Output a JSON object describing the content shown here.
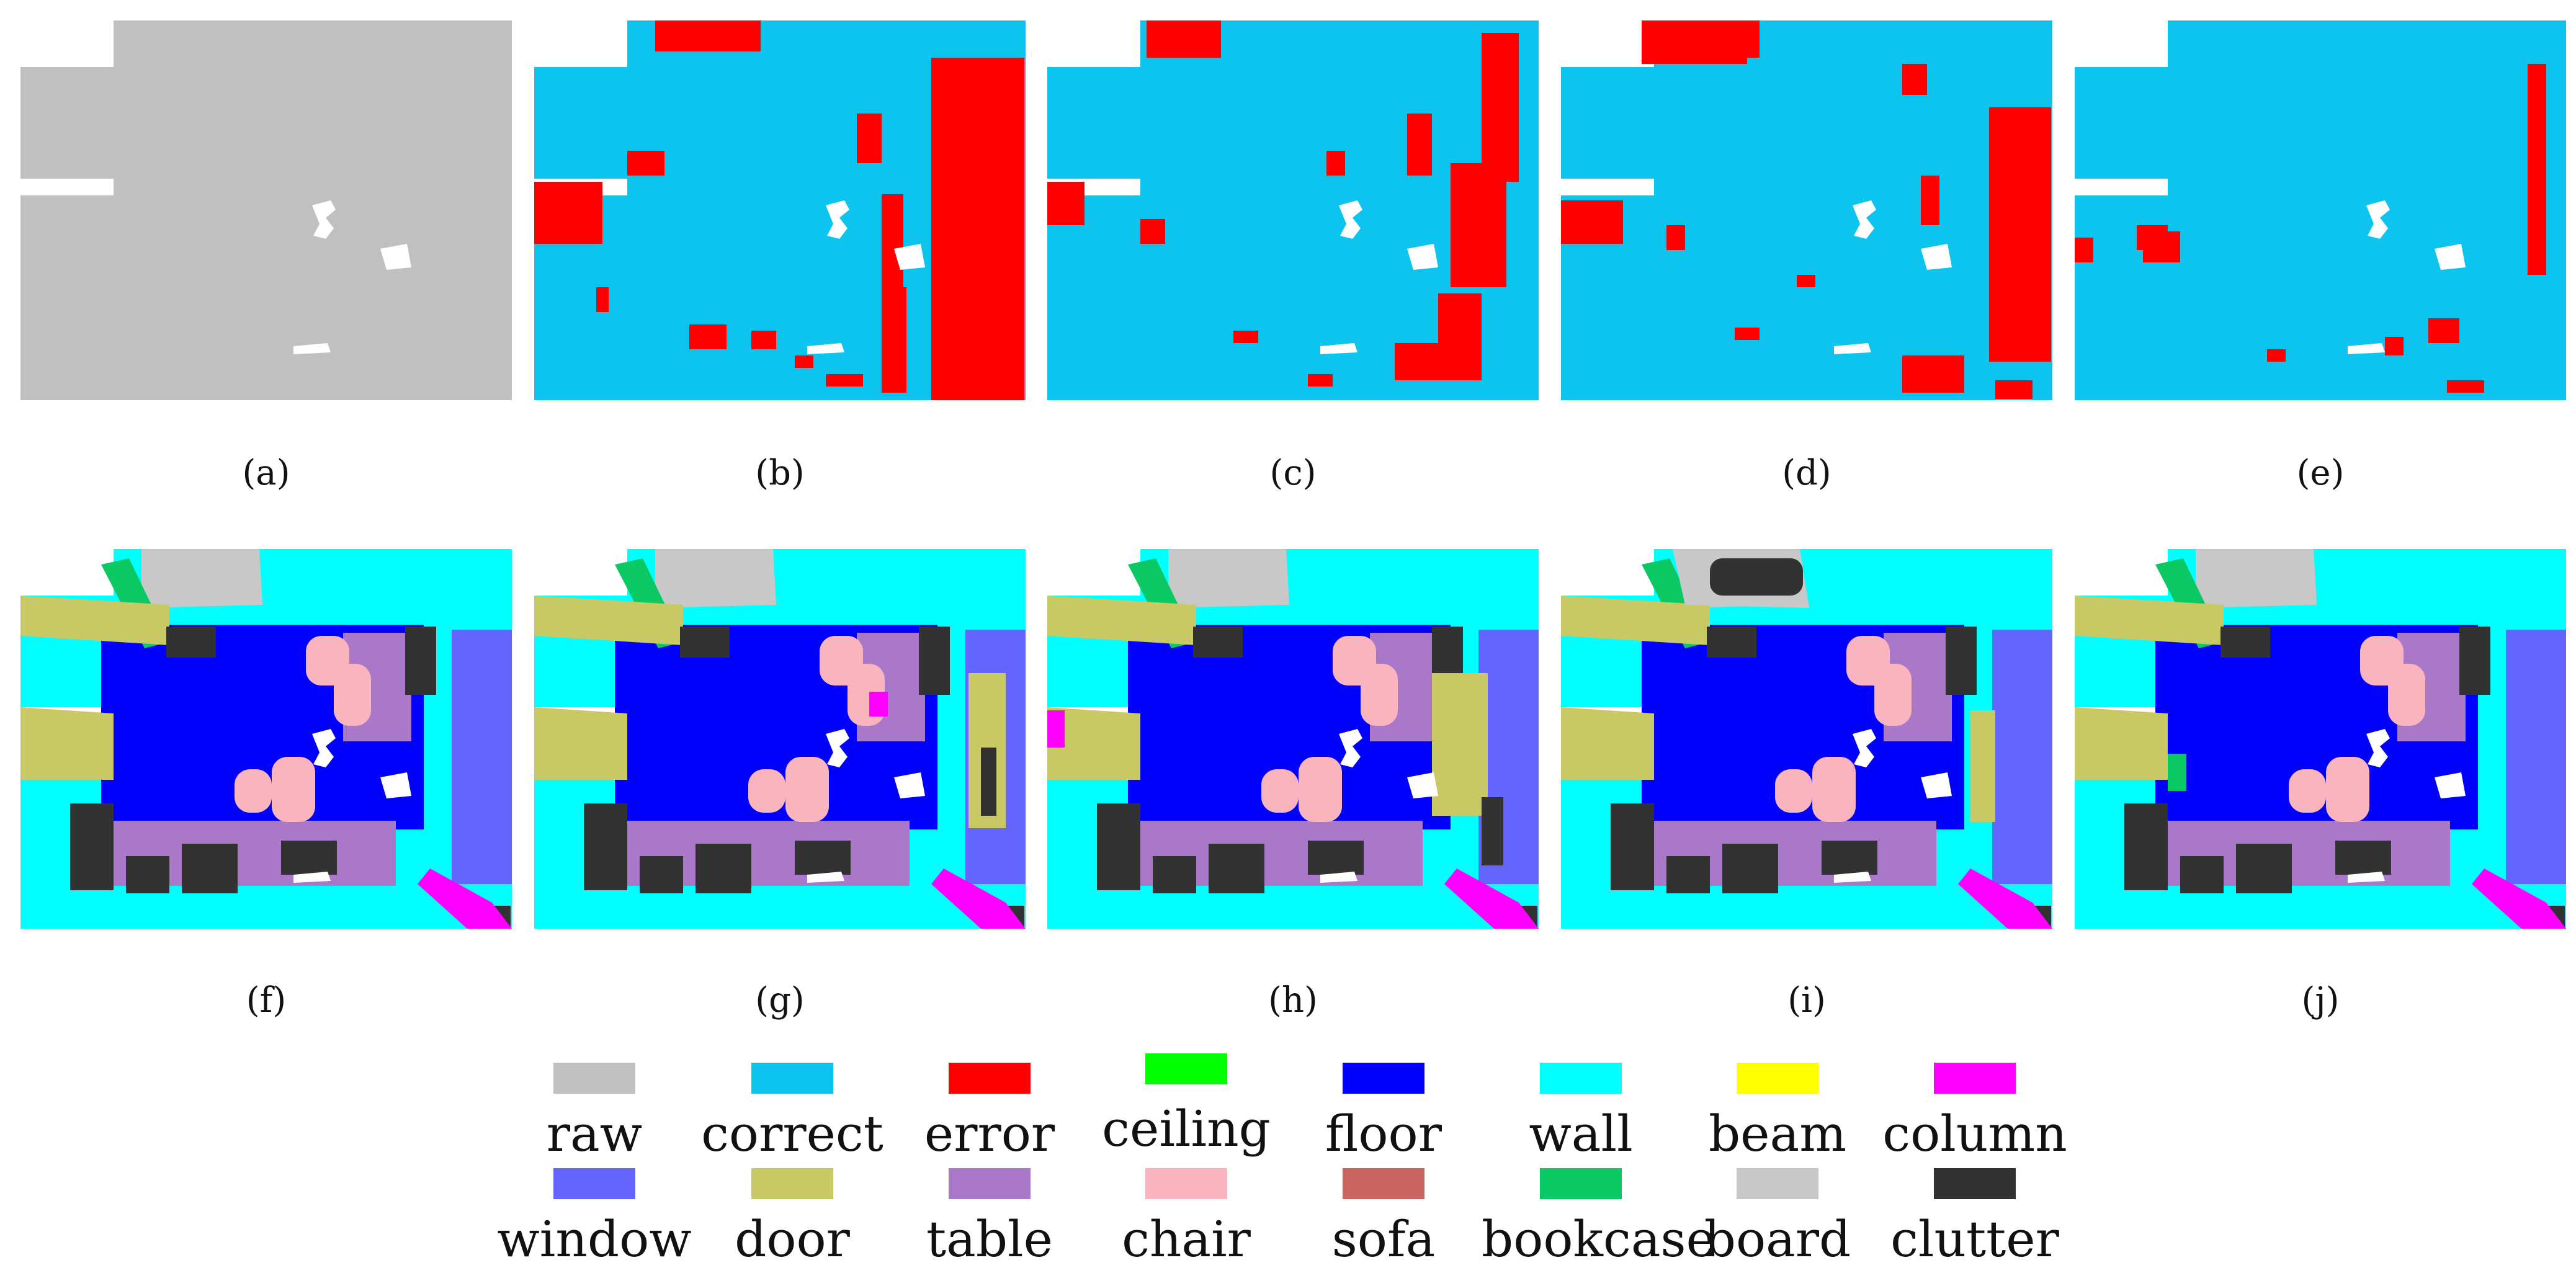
{
  "panels": [
    {
      "caption": "(a)",
      "type": "raw"
    },
    {
      "caption": "(b)",
      "type": "error"
    },
    {
      "caption": "(c)",
      "type": "error"
    },
    {
      "caption": "(d)",
      "type": "error"
    },
    {
      "caption": "(e)",
      "type": "error"
    },
    {
      "caption": "(f)",
      "type": "seg"
    },
    {
      "caption": "(g)",
      "type": "seg"
    },
    {
      "caption": "(h)",
      "type": "seg"
    },
    {
      "caption": "(i)",
      "type": "seg"
    },
    {
      "caption": "(j)",
      "type": "seg"
    }
  ],
  "legend": [
    {
      "label": "raw",
      "color": "#c0c0c0"
    },
    {
      "label": "correct",
      "color": "#0cc4ee"
    },
    {
      "label": "error",
      "color": "#ff0000"
    },
    {
      "label": "ceiling",
      "color": "#00ff00"
    },
    {
      "label": "floor",
      "color": "#0000ff"
    },
    {
      "label": "wall",
      "color": "#00ffff"
    },
    {
      "label": "beam",
      "color": "#ffff00"
    },
    {
      "label": "column",
      "color": "#ff00ff"
    },
    {
      "label": "window",
      "color": "#6464ff"
    },
    {
      "label": "door",
      "color": "#c8c864"
    },
    {
      "label": "table",
      "color": "#a978c8"
    },
    {
      "label": "chair",
      "color": "#fab4be"
    },
    {
      "label": "sofa",
      "color": "#c8645f"
    },
    {
      "label": "bookcase",
      "color": "#0ac864"
    },
    {
      "label": "board",
      "color": "#c8c8c8"
    },
    {
      "label": "clutter",
      "color": "#323232"
    }
  ]
}
